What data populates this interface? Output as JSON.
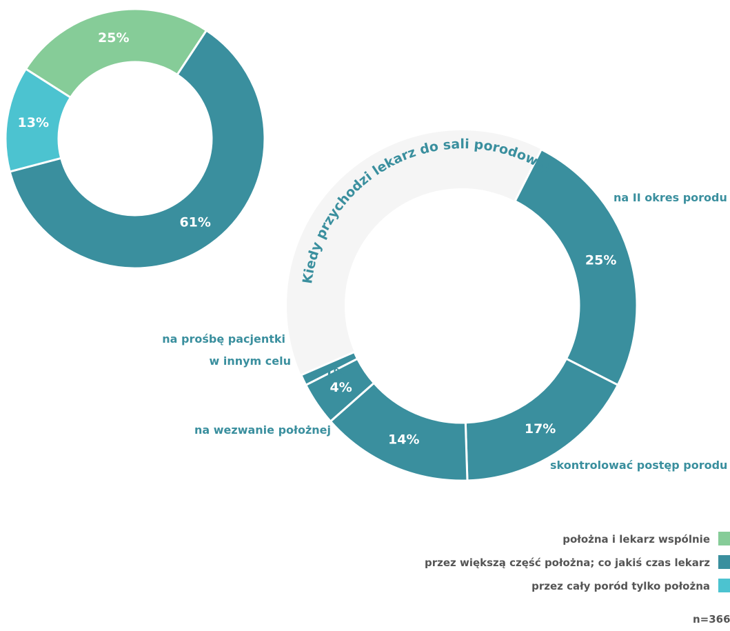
{
  "chart_data": [
    {
      "type": "pie",
      "variant": "donut",
      "title": "",
      "slices": [
        {
          "label": "położna i lekarz wspólnie",
          "value": 25,
          "value_label": "25%",
          "color": "#86cc98"
        },
        {
          "label": "przez większą część położna; co jakiś czas lekarz",
          "value": 61,
          "value_label": "61%",
          "color": "#3a8f9e"
        },
        {
          "label": "przez cały poród tylko położna",
          "value": 13,
          "value_label": "13%",
          "color": "#4cc3d0"
        }
      ],
      "legend": {
        "placement": "bottom-right",
        "entries": [
          {
            "label": "położna i lekarz wspólnie",
            "color": "#86cc98"
          },
          {
            "label": "przez większą część położna; co jakiś czas lekarz",
            "color": "#3a8f9e"
          },
          {
            "label": "przez cały poród tylko położna",
            "color": "#4cc3d0"
          }
        ]
      }
    },
    {
      "type": "pie",
      "variant": "donut",
      "title": "Kiedy przychodzi lekarz do sali porodowej?",
      "slices": [
        {
          "label": "na II okres porodu",
          "value": 25,
          "value_label": "25%",
          "color": "#3a8f9e"
        },
        {
          "label": "skontrolować postęp porodu",
          "value": 17,
          "value_label": "17%",
          "color": "#3a8f9e"
        },
        {
          "label": "na wezwanie położnej",
          "value": 14,
          "value_label": "14%",
          "color": "#3a8f9e"
        },
        {
          "label": "w innym celu",
          "value": 4,
          "value_label": "4%",
          "color": "#3a8f9e"
        },
        {
          "label": "na prośbę pacjentki",
          "value": 1,
          "value_label": "1%",
          "color": "#3a8f9e"
        }
      ]
    }
  ],
  "footer": {
    "n_label": "n=366"
  }
}
